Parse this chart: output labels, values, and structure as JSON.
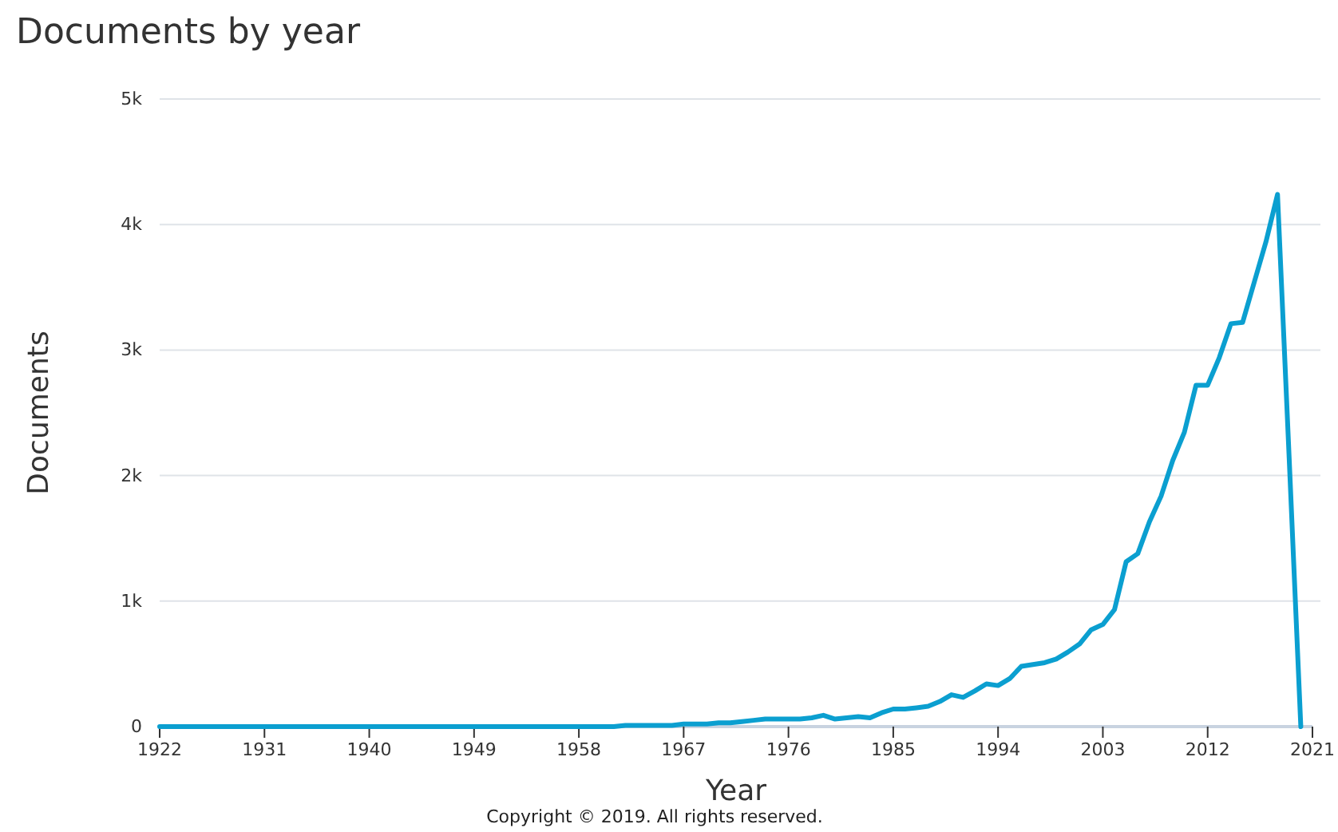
{
  "chart_data": {
    "type": "line",
    "title": "Documents by year",
    "xlabel": "Year",
    "ylabel": "Documents",
    "annotations": [
      "Copyright © 2019. All rights reserved."
    ],
    "x": [
      1922,
      1923,
      1924,
      1925,
      1926,
      1927,
      1928,
      1929,
      1930,
      1931,
      1932,
      1933,
      1934,
      1935,
      1936,
      1937,
      1938,
      1939,
      1940,
      1941,
      1942,
      1943,
      1944,
      1945,
      1946,
      1947,
      1948,
      1949,
      1950,
      1951,
      1952,
      1953,
      1954,
      1955,
      1956,
      1957,
      1958,
      1959,
      1960,
      1961,
      1962,
      1963,
      1964,
      1965,
      1966,
      1967,
      1968,
      1969,
      1970,
      1971,
      1972,
      1973,
      1974,
      1975,
      1976,
      1977,
      1978,
      1979,
      1980,
      1981,
      1982,
      1983,
      1984,
      1985,
      1986,
      1987,
      1988,
      1989,
      1990,
      1991,
      1992,
      1993,
      1994,
      1995,
      1996,
      1997,
      1998,
      1999,
      2000,
      2001,
      2002,
      2003,
      2004,
      2005,
      2006,
      2007,
      2008,
      2009,
      2010,
      2011,
      2012,
      2013,
      2014,
      2015,
      2016,
      2017,
      2018,
      2019,
      2020
    ],
    "series": [
      {
        "color": "#0b9fd0",
        "values": [
          0,
          0,
          0,
          0,
          0,
          0,
          0,
          0,
          0,
          0,
          0,
          0,
          0,
          0,
          0,
          0,
          0,
          0,
          0,
          0,
          0,
          0,
          0,
          0,
          0,
          0,
          0,
          0,
          0,
          0,
          0,
          0,
          0,
          0,
          0,
          0,
          0,
          0,
          0,
          0,
          10,
          10,
          10,
          10,
          10,
          20,
          20,
          20,
          30,
          30,
          40,
          50,
          60,
          60,
          60,
          60,
          70,
          90,
          60,
          70,
          80,
          70,
          110,
          140,
          140,
          150,
          162,
          200,
          254,
          233,
          284,
          340,
          327,
          382,
          480,
          495,
          509,
          538,
          594,
          658,
          772,
          814,
          932,
          1314,
          1378,
          1632,
          1836,
          2120,
          2345,
          2720,
          2720,
          2940,
          3210,
          3220,
          3540,
          3860,
          4240,
          2140,
          0
        ]
      }
    ],
    "xlim": [
      1922,
      2021
    ],
    "xticks": [
      1922,
      1931,
      1940,
      1949,
      1958,
      1967,
      1976,
      1985,
      1994,
      2003,
      2012,
      2021
    ],
    "ylim": [
      0,
      5000
    ],
    "yticks": [
      {
        "value": 0,
        "label": "0"
      },
      {
        "value": 1000,
        "label": "1k"
      },
      {
        "value": 2000,
        "label": "2k"
      },
      {
        "value": 3000,
        "label": "3k"
      },
      {
        "value": 4000,
        "label": "4k"
      },
      {
        "value": 5000,
        "label": "5k"
      }
    ],
    "grid": "y",
    "marker": "none",
    "line_style": "solid"
  }
}
